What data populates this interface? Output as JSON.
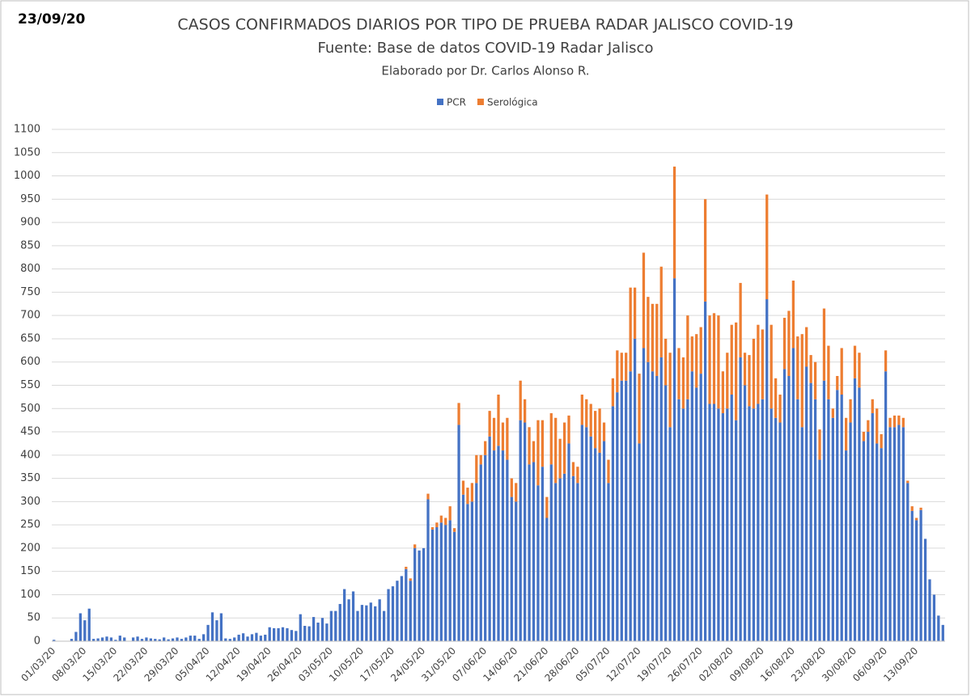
{
  "chart_data": {
    "type": "stacked-bar",
    "date": "23/09/20",
    "title": "CASOS CONFIRMADOS DIARIOS POR TIPO DE PRUEBA RADAR JALISCO COVID-19",
    "subtitle": "Fuente: Base de datos COVID-19 Radar Jalisco",
    "caption": "Elaborado por Dr. Carlos Alonso R.",
    "categories": [
      "01/03/20",
      null,
      null,
      null,
      null,
      null,
      null,
      "08/03/20",
      null,
      null,
      null,
      null,
      null,
      null,
      "15/03/20",
      null,
      null,
      null,
      null,
      null,
      null,
      "22/03/20",
      null,
      null,
      null,
      null,
      null,
      null,
      "29/03/20",
      null,
      null,
      null,
      null,
      null,
      null,
      "05/04/20",
      null,
      null,
      null,
      null,
      null,
      null,
      "12/04/20",
      null,
      null,
      null,
      null,
      null,
      null,
      "19/04/20",
      null,
      null,
      null,
      null,
      null,
      null,
      "26/04/20",
      null,
      null,
      null,
      null,
      null,
      null,
      "03/05/20",
      null,
      null,
      null,
      null,
      null,
      null,
      "10/05/20",
      null,
      null,
      null,
      null,
      null,
      null,
      "17/05/20",
      null,
      null,
      null,
      null,
      null,
      null,
      "24/05/20",
      null,
      null,
      null,
      null,
      null,
      null,
      "31/05/20",
      null,
      null,
      null,
      null,
      null,
      null,
      "07/06/20",
      null,
      null,
      null,
      null,
      null,
      null,
      "14/06/20",
      null,
      null,
      null,
      null,
      null,
      null,
      "21/06/20",
      null,
      null,
      null,
      null,
      null,
      null,
      "28/06/20",
      null,
      null,
      null,
      null,
      null,
      null,
      "05/07/20",
      null,
      null,
      null,
      null,
      null,
      null,
      "12/07/20",
      null,
      null,
      null,
      null,
      null,
      null,
      "19/07/20",
      null,
      null,
      null,
      null,
      null,
      null,
      "26/07/20",
      null,
      null,
      null,
      null,
      null,
      null,
      "02/08/20",
      null,
      null,
      null,
      null,
      null,
      null,
      "09/08/20",
      null,
      null,
      null,
      null,
      null,
      null,
      "16/08/20",
      null,
      null,
      null,
      null,
      null,
      null,
      "23/08/20",
      null,
      null,
      null,
      null,
      null,
      null,
      "30/08/20",
      null,
      null,
      null,
      null,
      null,
      null,
      "06/09/20",
      null,
      null,
      null,
      null,
      null,
      null,
      "13/09/20",
      null,
      null,
      null,
      null,
      null,
      null
    ],
    "series": [
      {
        "name": "PCR",
        "color": "#4472c4",
        "values": [
          3,
          0,
          0,
          0,
          5,
          20,
          60,
          45,
          70,
          5,
          6,
          8,
          10,
          8,
          3,
          12,
          8,
          0,
          8,
          10,
          5,
          8,
          6,
          5,
          4,
          8,
          4,
          6,
          8,
          5,
          8,
          12,
          12,
          5,
          15,
          35,
          62,
          45,
          60,
          6,
          5,
          8,
          14,
          17,
          10,
          15,
          18,
          12,
          14,
          30,
          28,
          28,
          30,
          28,
          24,
          22,
          58,
          33,
          32,
          52,
          40,
          50,
          38,
          65,
          65,
          80,
          112,
          90,
          107,
          65,
          78,
          77,
          83,
          75,
          90,
          65,
          112,
          118,
          130,
          140,
          155,
          130,
          200,
          195,
          200,
          305,
          240,
          245,
          255,
          250,
          260,
          235,
          465,
          315,
          295,
          300,
          340,
          380,
          400,
          440,
          410,
          420,
          410,
          390,
          310,
          300,
          475,
          470,
          380,
          385,
          335,
          375,
          265,
          380,
          340,
          350,
          360,
          425,
          355,
          340,
          465,
          460,
          440,
          415,
          405,
          430,
          340,
          505,
          535,
          560,
          560,
          580,
          650,
          425,
          630,
          600,
          580,
          570,
          610,
          550,
          460,
          780,
          520,
          500,
          520,
          580,
          545,
          575,
          730,
          510,
          510,
          500,
          490,
          500,
          530,
          475,
          610,
          550,
          505,
          500,
          510,
          520,
          735,
          500,
          480,
          470,
          585,
          570,
          630,
          520,
          460,
          590,
          555,
          520,
          390,
          560,
          520,
          480,
          540,
          530,
          410,
          470,
          565,
          545,
          430,
          450,
          490,
          425,
          415,
          580,
          460,
          460,
          465,
          460,
          340,
          280,
          260,
          282,
          220,
          133,
          100,
          55,
          35
        ]
      },
      {
        "name": "Serológica",
        "color": "#ed7d31",
        "values": [
          0,
          0,
          0,
          0,
          0,
          0,
          0,
          0,
          0,
          0,
          0,
          0,
          0,
          0,
          0,
          0,
          0,
          0,
          0,
          0,
          0,
          0,
          0,
          0,
          0,
          0,
          0,
          0,
          0,
          0,
          0,
          0,
          0,
          0,
          0,
          0,
          0,
          0,
          0,
          0,
          0,
          0,
          0,
          0,
          0,
          0,
          0,
          0,
          0,
          0,
          0,
          0,
          0,
          0,
          0,
          0,
          0,
          0,
          0,
          0,
          0,
          0,
          0,
          0,
          0,
          0,
          0,
          0,
          0,
          0,
          0,
          0,
          0,
          0,
          0,
          0,
          0,
          0,
          0,
          0,
          5,
          5,
          8,
          0,
          0,
          12,
          5,
          10,
          15,
          15,
          30,
          8,
          47,
          30,
          35,
          40,
          60,
          20,
          30,
          55,
          70,
          110,
          60,
          90,
          40,
          40,
          85,
          50,
          80,
          45,
          140,
          100,
          45,
          110,
          140,
          85,
          110,
          60,
          30,
          35,
          65,
          60,
          70,
          80,
          95,
          40,
          50,
          60,
          90,
          60,
          60,
          180,
          110,
          150,
          205,
          140,
          145,
          155,
          195,
          100,
          160,
          240,
          110,
          110,
          180,
          75,
          115,
          100,
          220,
          190,
          195,
          200,
          90,
          120,
          150,
          210,
          160,
          70,
          110,
          150,
          170,
          150,
          225,
          180,
          85,
          60,
          110,
          140,
          145,
          135,
          200,
          85,
          60,
          80,
          65,
          155,
          115,
          20,
          30,
          100,
          70,
          50,
          70,
          75,
          20,
          25,
          30,
          75,
          30,
          45,
          20,
          25,
          20,
          20,
          5,
          10,
          5,
          5,
          0,
          0,
          0,
          0,
          0
        ]
      }
    ],
    "ylim": [
      0,
      1100
    ],
    "yticks": [
      0,
      50,
      100,
      150,
      200,
      250,
      300,
      350,
      400,
      450,
      500,
      550,
      600,
      650,
      700,
      750,
      800,
      850,
      900,
      950,
      1000,
      1050,
      1100
    ],
    "grid": true,
    "legend": "top"
  }
}
